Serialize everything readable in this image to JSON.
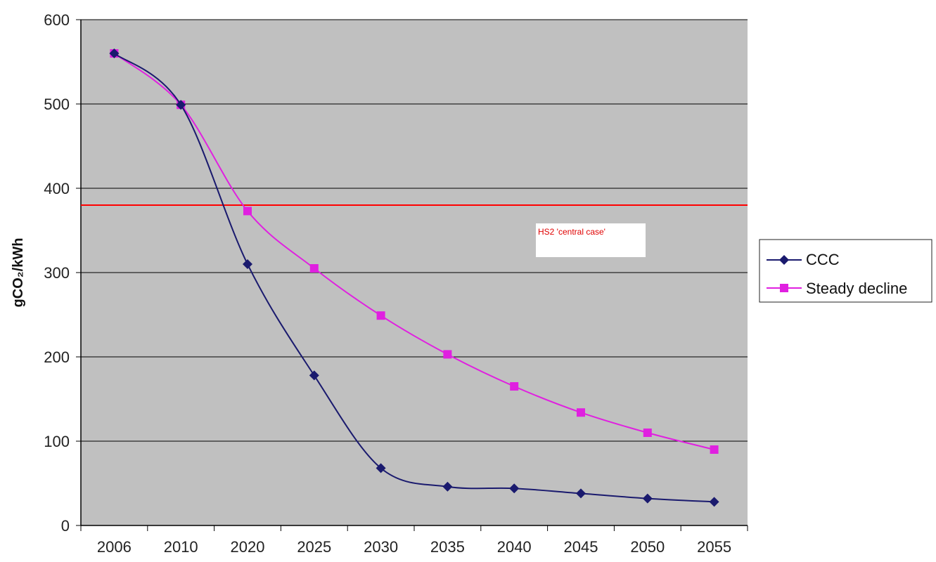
{
  "chart_data": {
    "type": "line",
    "categories": [
      "2006",
      "2010",
      "2020",
      "2025",
      "2030",
      "2035",
      "2040",
      "2045",
      "2050",
      "2055"
    ],
    "series": [
      {
        "name": "CCC",
        "color": "#1a1a6e",
        "marker": "diamond",
        "values": [
          560,
          499,
          310,
          178,
          68,
          46,
          44,
          38,
          32,
          28
        ]
      },
      {
        "name": "Steady decline",
        "color": "#e020e0",
        "marker": "square",
        "values": [
          560,
          499,
          373,
          305,
          249,
          203,
          165,
          134,
          110,
          90
        ]
      }
    ],
    "ylabel": "gCO₂/kWh",
    "ylim": [
      0,
      600
    ],
    "yticks": [
      "0",
      "100",
      "200",
      "300",
      "400",
      "500",
      "600"
    ],
    "grid": true,
    "plot_background": "#c0c0c0",
    "reference_line": {
      "value": 380,
      "color": "#ff0000",
      "label": "HS2 'central case'"
    },
    "legend": {
      "placement": "right",
      "entries": [
        "CCC",
        "Steady decline"
      ]
    }
  }
}
